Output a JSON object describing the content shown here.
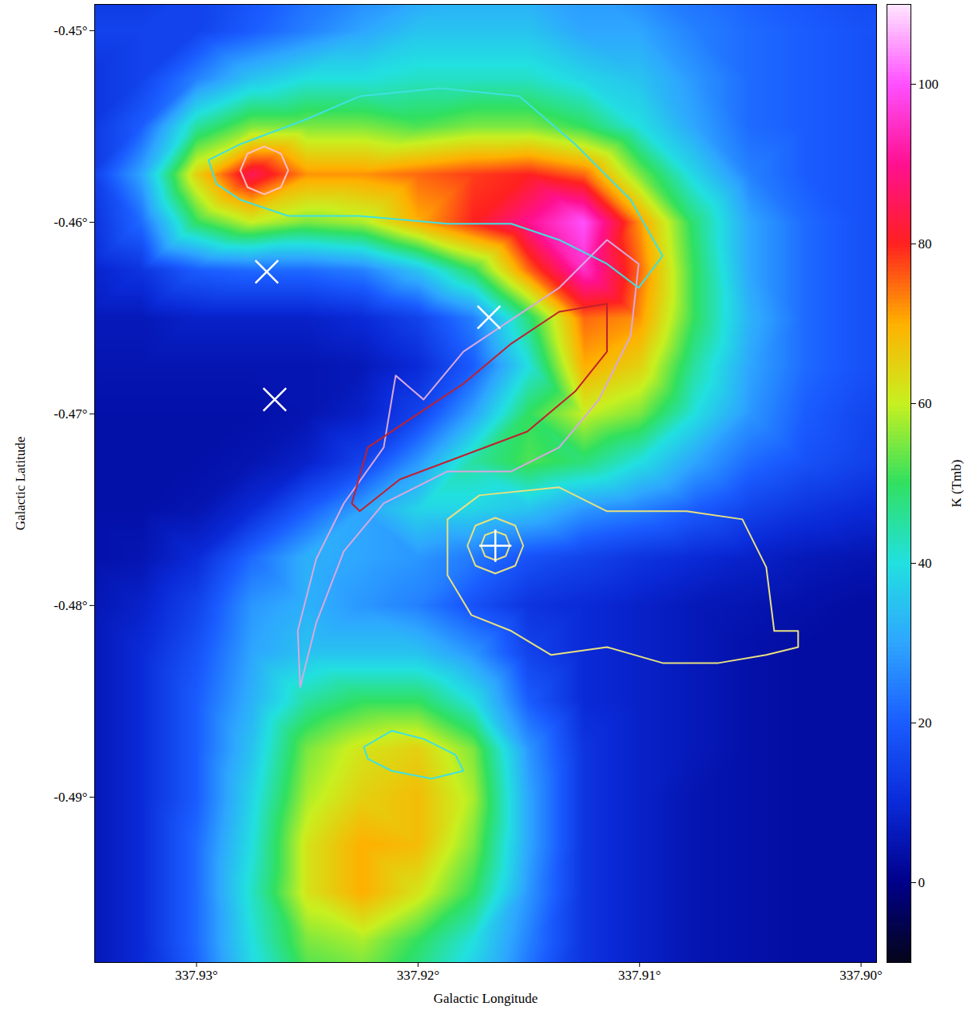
{
  "chart_data": {
    "type": "heatmap",
    "x_label": "Galactic Longitude",
    "y_label": "Galactic Latitude",
    "xlim": [
      337.9346,
      337.8993
    ],
    "ylim": [
      -0.49863,
      -0.44863
    ],
    "xticks": [
      {
        "value": 337.93,
        "label": "337.93°"
      },
      {
        "value": 337.92,
        "label": "337.92°"
      },
      {
        "value": 337.91,
        "label": "337.91°"
      },
      {
        "value": 337.9,
        "label": "337.90°"
      }
    ],
    "yticks": [
      {
        "value": -0.45,
        "label": "-0.45°"
      },
      {
        "value": -0.46,
        "label": "-0.46°"
      },
      {
        "value": -0.47,
        "label": "-0.47°"
      },
      {
        "value": -0.48,
        "label": "-0.48°"
      },
      {
        "value": -0.49,
        "label": "-0.49°"
      }
    ],
    "x": [
      337.935,
      337.9325,
      337.93,
      337.9275,
      337.925,
      337.9225,
      337.92,
      337.9175,
      337.915,
      337.9125,
      337.91,
      337.9075,
      337.905,
      337.9025,
      337.9,
      337.8975
    ],
    "y": [
      -0.4475,
      -0.45,
      -0.4525,
      -0.455,
      -0.4575,
      -0.46,
      -0.4625,
      -0.465,
      -0.4675,
      -0.47,
      -0.4725,
      -0.475,
      -0.4775,
      -0.48,
      -0.4825,
      -0.485,
      -0.4875,
      -0.49,
      -0.4925,
      -0.495,
      -0.4975,
      -0.5
    ],
    "values": [
      [
        12,
        12,
        15,
        18,
        22,
        25,
        28,
        30,
        30,
        28,
        25,
        22,
        20,
        18,
        16,
        15
      ],
      [
        15,
        15,
        15,
        20,
        25,
        30,
        35,
        35,
        35,
        30,
        30,
        25,
        22,
        20,
        18,
        18
      ],
      [
        12,
        15,
        25,
        35,
        40,
        40,
        42,
        42,
        42,
        38,
        35,
        28,
        22,
        20,
        18,
        15
      ],
      [
        12,
        20,
        45,
        55,
        55,
        55,
        52,
        55,
        55,
        50,
        40,
        30,
        22,
        20,
        18,
        15
      ],
      [
        12,
        30,
        65,
        85,
        72,
        72,
        75,
        78,
        80,
        75,
        55,
        38,
        25,
        20,
        18,
        15
      ],
      [
        10,
        22,
        50,
        60,
        55,
        58,
        70,
        80,
        90,
        100,
        72,
        48,
        30,
        22,
        18,
        15
      ],
      [
        8,
        12,
        20,
        22,
        22,
        25,
        35,
        50,
        75,
        95,
        75,
        50,
        30,
        22,
        18,
        15
      ],
      [
        6,
        6,
        8,
        8,
        8,
        10,
        15,
        25,
        48,
        75,
        72,
        50,
        32,
        22,
        18,
        15
      ],
      [
        5,
        5,
        5,
        5,
        5,
        6,
        10,
        20,
        40,
        70,
        65,
        45,
        30,
        22,
        18,
        15
      ],
      [
        4,
        4,
        4,
        4,
        5,
        8,
        15,
        30,
        50,
        60,
        55,
        40,
        28,
        20,
        16,
        14
      ],
      [
        4,
        4,
        4,
        5,
        8,
        15,
        28,
        45,
        52,
        48,
        40,
        30,
        22,
        18,
        15,
        12
      ],
      [
        4,
        4,
        5,
        10,
        20,
        30,
        38,
        38,
        35,
        28,
        25,
        20,
        15,
        12,
        10,
        8
      ],
      [
        4,
        5,
        10,
        22,
        32,
        30,
        28,
        24,
        18,
        15,
        12,
        10,
        8,
        6,
        5,
        5
      ],
      [
        5,
        8,
        15,
        28,
        32,
        28,
        25,
        18,
        12,
        10,
        8,
        6,
        5,
        4,
        3,
        3
      ],
      [
        5,
        10,
        18,
        30,
        35,
        35,
        35,
        28,
        15,
        10,
        8,
        6,
        4,
        3,
        3,
        3
      ],
      [
        5,
        10,
        20,
        32,
        45,
        50,
        50,
        40,
        20,
        10,
        8,
        6,
        4,
        3,
        3,
        3
      ],
      [
        5,
        10,
        20,
        35,
        55,
        62,
        65,
        55,
        28,
        12,
        8,
        6,
        4,
        3,
        3,
        3
      ],
      [
        5,
        10,
        20,
        38,
        58,
        65,
        68,
        58,
        30,
        12,
        8,
        5,
        4,
        3,
        3,
        3
      ],
      [
        5,
        10,
        22,
        40,
        62,
        70,
        68,
        55,
        30,
        12,
        8,
        5,
        4,
        3,
        3,
        3
      ],
      [
        5,
        10,
        22,
        42,
        62,
        70,
        62,
        50,
        28,
        12,
        8,
        5,
        4,
        3,
        3,
        3
      ],
      [
        5,
        10,
        22,
        40,
        55,
        58,
        50,
        40,
        25,
        12,
        8,
        5,
        4,
        3,
        3,
        3
      ],
      [
        5,
        10,
        20,
        38,
        50,
        52,
        45,
        35,
        22,
        12,
        8,
        5,
        4,
        3,
        3,
        3
      ]
    ],
    "colorbar": {
      "label": "K (Tmb)",
      "range": [
        -10,
        110
      ],
      "ticks": [
        0,
        20,
        40,
        60,
        80,
        100
      ],
      "colors": [
        "#05051a",
        "#00008a",
        "#0a2ad8",
        "#1a5cff",
        "#2ea6ff",
        "#22e0e0",
        "#30e060",
        "#c8f020",
        "#ffb000",
        "#ff2020",
        "#ff1090",
        "#ff50ff",
        "#ffe8ff"
      ]
    },
    "contours": [
      {
        "color": "#e8e080",
        "lon": [
          337.91867,
          337.91723,
          337.91363,
          337.91147,
          337.90788,
          337.90536,
          337.90428,
          337.90392,
          337.90284,
          337.90284,
          337.90428,
          337.90644,
          337.90896,
          337.91147,
          337.91399,
          337.91579,
          337.91759,
          337.91867
        ],
        "lat": [
          -0.4755,
          -0.47425,
          -0.47383,
          -0.47508,
          -0.47508,
          -0.4755,
          -0.478,
          -0.48133,
          -0.48133,
          -0.48217,
          -0.48258,
          -0.483,
          -0.483,
          -0.48217,
          -0.48258,
          -0.48133,
          -0.4805,
          -0.47842
        ]
      },
      {
        "color": "#e8e080",
        "lon": [
          337.91525,
          337.91561,
          337.91651,
          337.91741,
          337.91777,
          337.91741,
          337.91651,
          337.91561
        ],
        "lat": [
          -0.47688,
          -0.47583,
          -0.47542,
          -0.47583,
          -0.47688,
          -0.47792,
          -0.47833,
          -0.47792
        ]
      },
      {
        "color": "#e8e080",
        "lon": [
          337.91586,
          337.91604,
          337.91651,
          337.91698,
          337.91716,
          337.91698,
          337.91651,
          337.91604
        ],
        "lat": [
          -0.47688,
          -0.47633,
          -0.47613,
          -0.47633,
          -0.47688,
          -0.47742,
          -0.47763,
          -0.47742
        ]
      },
      {
        "color": "#d8a8e0",
        "lon": [
          337.92532,
          337.92543,
          337.9246,
          337.92335,
          337.92155,
          337.92101,
          337.91975,
          337.91795,
          337.91579,
          337.91363,
          337.91147,
          337.91004,
          337.9104,
          337.91183,
          337.91363,
          337.91579,
          337.91867,
          337.92155,
          337.92335,
          337.9246
        ],
        "lat": [
          -0.48425,
          -0.48133,
          -0.47758,
          -0.47467,
          -0.47175,
          -0.468,
          -0.46925,
          -0.46675,
          -0.46508,
          -0.46342,
          -0.46092,
          -0.46217,
          -0.46592,
          -0.46925,
          -0.47175,
          -0.473,
          -0.473,
          -0.47467,
          -0.47717,
          -0.48092
        ]
      },
      {
        "color": "#c02030",
        "lon": [
          337.92299,
          337.92227,
          337.92011,
          337.91795,
          337.91579,
          337.91363,
          337.91147,
          337.91147,
          337.91291,
          337.91507,
          337.91795,
          337.92083,
          337.92263
        ],
        "lat": [
          -0.47467,
          -0.47175,
          -0.47008,
          -0.46842,
          -0.46633,
          -0.46467,
          -0.46425,
          -0.46675,
          -0.46883,
          -0.47092,
          -0.47217,
          -0.47342,
          -0.47508
        ]
      },
      {
        "color": "#40e0e0",
        "lon": [
          337.9291,
          337.92946,
          337.92802,
          337.92514,
          337.92263,
          337.91903,
          337.91543,
          337.91291,
          337.9104,
          337.90896,
          337.91004,
          337.91147,
          337.91363,
          337.91579,
          337.91867,
          337.92263,
          337.92586,
          337.92802
        ],
        "lat": [
          -0.458,
          -0.45675,
          -0.45592,
          -0.45467,
          -0.45342,
          -0.453,
          -0.45342,
          -0.45592,
          -0.45883,
          -0.46175,
          -0.46342,
          -0.46217,
          -0.46092,
          -0.46008,
          -0.46008,
          -0.45967,
          -0.45967,
          -0.45883
        ]
      },
      {
        "color": "#ffc0c8",
        "lon": [
          337.92586,
          337.92619,
          337.92694,
          337.9277,
          337.92802,
          337.9277,
          337.92694,
          337.92619
        ],
        "lat": [
          -0.45729,
          -0.45642,
          -0.45604,
          -0.45642,
          -0.45729,
          -0.45817,
          -0.45854,
          -0.45817
        ]
      },
      {
        "color": "#40e0e0",
        "lon": [
          337.92245,
          337.92119,
          337.91975,
          337.91831,
          337.91795,
          337.91939,
          337.92119,
          337.92227
        ],
        "lat": [
          -0.48738,
          -0.48654,
          -0.48696,
          -0.48779,
          -0.48863,
          -0.48904,
          -0.48863,
          -0.488
        ]
      }
    ],
    "markers": [
      {
        "marker": "times",
        "color": "white",
        "lon": [
          337.92683,
          337.9168,
          337.92647
        ],
        "lat": [
          -0.46258,
          -0.46496,
          -0.46925
        ]
      },
      {
        "marker": "plus",
        "color": "white",
        "lon": [
          337.91651
        ],
        "lat": [
          -0.47688
        ]
      }
    ]
  }
}
